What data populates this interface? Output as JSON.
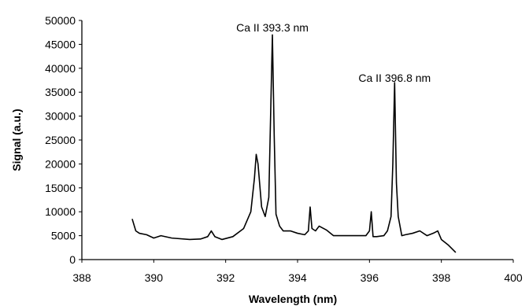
{
  "chart_data": {
    "type": "line",
    "title": "",
    "xlabel": "Wavelength (nm)",
    "ylabel": "Signal (a.u.)",
    "xlim": [
      388,
      400
    ],
    "ylim": [
      0,
      50000
    ],
    "x_ticks": [
      388,
      390,
      392,
      394,
      396,
      398,
      400
    ],
    "y_ticks": [
      0,
      5000,
      10000,
      15000,
      20000,
      25000,
      30000,
      35000,
      40000,
      45000,
      50000
    ],
    "grid": false,
    "legend": "none",
    "line_color": "#000000",
    "annotations": [
      {
        "text": "Ca II 393.3 nm",
        "x": 393.3,
        "y": 47000
      },
      {
        "text": "Ca II 396.8 nm",
        "x": 396.7,
        "y": 36500
      }
    ],
    "series": [
      {
        "x": [
          389.4,
          389.5,
          389.6,
          389.8,
          390.0,
          390.2,
          390.5,
          391.0,
          391.3,
          391.5,
          391.6,
          391.7,
          391.9,
          392.2,
          392.5,
          392.7,
          392.8,
          392.85,
          392.9,
          393.0,
          393.1,
          393.2,
          393.25,
          393.3,
          393.35,
          393.4,
          393.5,
          393.6,
          393.8,
          394.0,
          394.2,
          394.3,
          394.35,
          394.4,
          394.5,
          394.6,
          394.8,
          395.0,
          395.3,
          395.6,
          395.9,
          396.0,
          396.05,
          396.1,
          396.2,
          396.4,
          396.5,
          396.6,
          396.65,
          396.7,
          396.75,
          396.8,
          396.9,
          397.0,
          397.2,
          397.4,
          397.6,
          397.8,
          397.9,
          398.0,
          398.2,
          398.4
        ],
        "y": [
          8500,
          6000,
          5500,
          5200,
          4500,
          5000,
          4500,
          4200,
          4300,
          4800,
          6000,
          4800,
          4200,
          4800,
          6500,
          10000,
          17000,
          22000,
          20000,
          11000,
          9000,
          13000,
          30000,
          47000,
          26000,
          9500,
          7000,
          6000,
          6000,
          5500,
          5200,
          6000,
          11000,
          6500,
          6000,
          7000,
          6200,
          5000,
          5000,
          5000,
          5000,
          6000,
          10000,
          4800,
          4800,
          5000,
          6000,
          9000,
          20000,
          37000,
          16000,
          9000,
          5000,
          5200,
          5500,
          6000,
          5000,
          5600,
          6000,
          4200,
          3000,
          1500
        ]
      }
    ]
  }
}
